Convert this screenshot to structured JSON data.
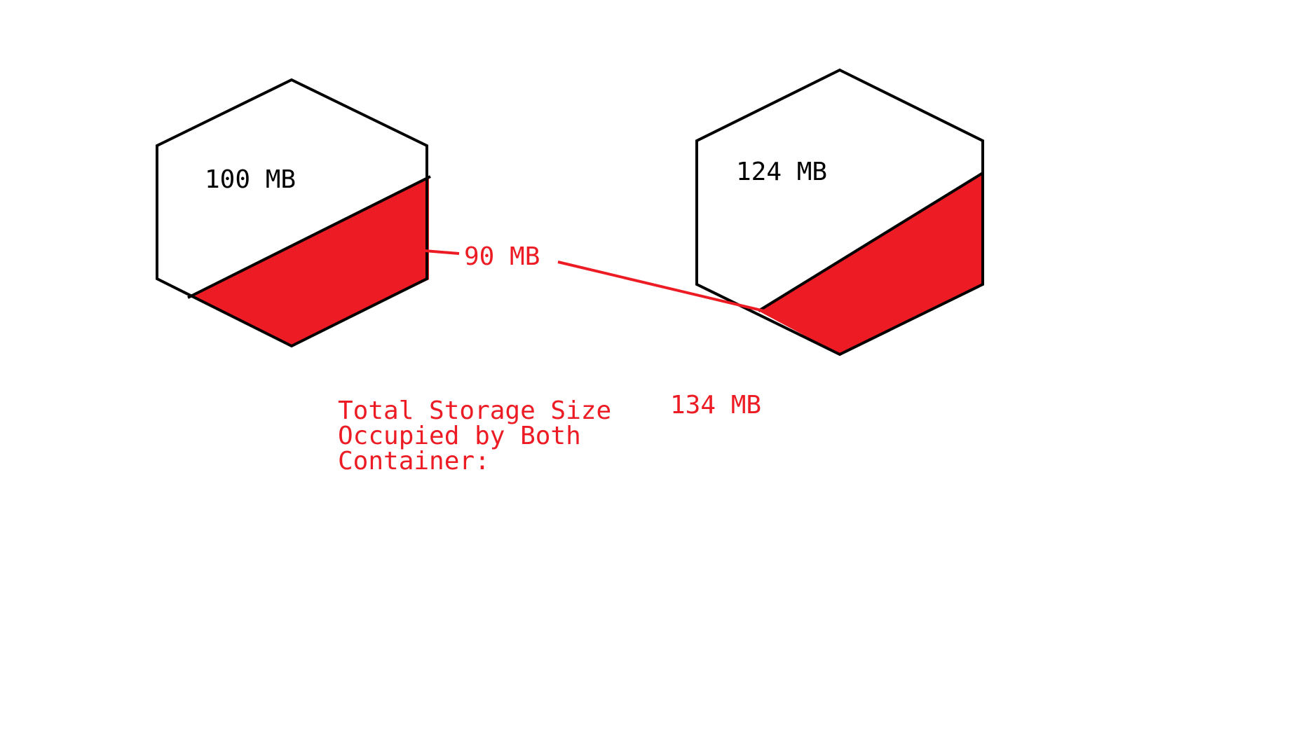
{
  "colors": {
    "outline": "#000000",
    "fill_used": "#ed1c24",
    "annotation": "#ed1c24",
    "background": "#ffffff"
  },
  "containers": [
    {
      "size_label": "100 MB"
    },
    {
      "size_label": "124 MB"
    }
  ],
  "shared_label": "90 MB",
  "total": {
    "caption_lines": [
      "Total Storage Size",
      "Occupied by Both",
      "Container:"
    ],
    "value": "134 MB"
  }
}
